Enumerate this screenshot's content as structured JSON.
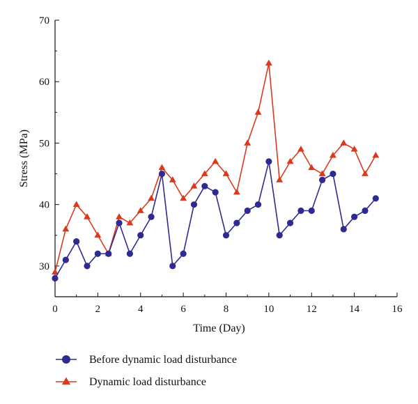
{
  "chart_data": {
    "type": "line",
    "xlabel": "Time (Day)",
    "ylabel": "Stress (MPa)",
    "xlim": [
      0,
      16
    ],
    "ylim": [
      25,
      70
    ],
    "xticks": [
      0,
      2,
      4,
      6,
      8,
      10,
      12,
      14,
      16
    ],
    "xtick_labels": [
      "0",
      "2",
      "4",
      "6",
      "8",
      "10",
      "12",
      "14",
      "16"
    ],
    "yticks": [
      30,
      40,
      50,
      60,
      70
    ],
    "ytick_labels": [
      "30",
      "40",
      "50",
      "60",
      "70"
    ],
    "grid": false,
    "legend_position": "bottom-left",
    "x": [
      0,
      0.5,
      1,
      1.5,
      2,
      2.5,
      3,
      3.5,
      4,
      4.5,
      5,
      5.5,
      6,
      6.5,
      7,
      7.5,
      8,
      8.5,
      9,
      9.5,
      10,
      10.5,
      11,
      11.5,
      12,
      12.5,
      13,
      13.5,
      14,
      14.5,
      15
    ],
    "series": [
      {
        "name": "Before dynamic load disturbance",
        "color": "#2e2a8f",
        "marker": "circle",
        "values": [
          28,
          31,
          34,
          30,
          32,
          32,
          37,
          32,
          35,
          38,
          45,
          30,
          32,
          40,
          43,
          42,
          35,
          37,
          39,
          40,
          47,
          35,
          37,
          39,
          39,
          44,
          45,
          36,
          38,
          39,
          41
        ]
      },
      {
        "name": "Dynamic load disturbance",
        "color": "#d93a1e",
        "marker": "triangle",
        "values": [
          29,
          36,
          40,
          38,
          35,
          32,
          38,
          37,
          39,
          41,
          46,
          44,
          41,
          43,
          45,
          47,
          45,
          42,
          50,
          55,
          63,
          44,
          47,
          49,
          46,
          45,
          48,
          50,
          49,
          45,
          48
        ]
      }
    ]
  }
}
